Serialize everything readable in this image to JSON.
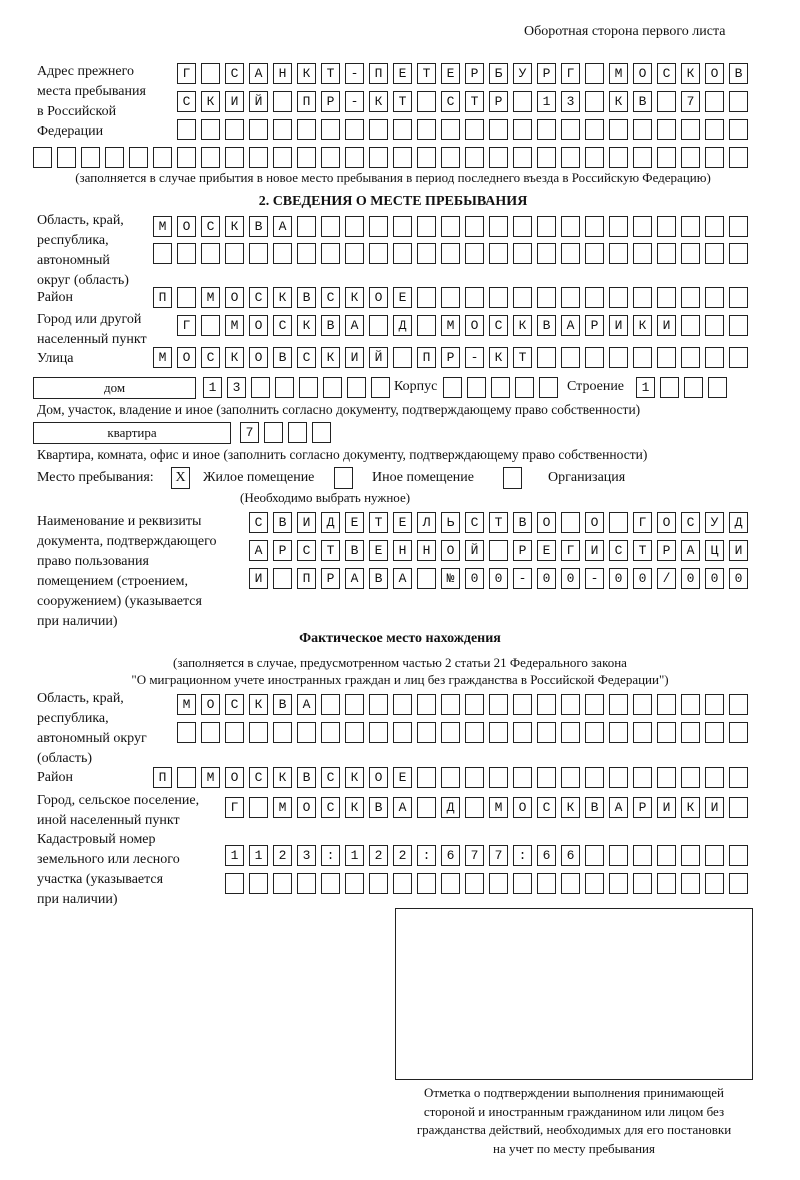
{
  "header": "Оборотная сторона первого листа",
  "prev_address": {
    "label": [
      "Адрес прежнего",
      "места пребывания",
      "в Российской",
      "Федерации"
    ],
    "rows": [
      "Г САНКТ-ПЕТЕРБУРГ МОСКОВ",
      "СКИЙ ПР-КТ СТР 13 КВ 7  ",
      "                        ",
      "                              "
    ],
    "note": "(заполняется в случае прибытия в новое место пребывания в период последнего въезда в Российскую Федерацию)"
  },
  "section2": {
    "title": "2. СВЕДЕНИЯ О МЕСТЕ ПРЕБЫВАНИЯ",
    "region_label": [
      "Область, край,",
      "республика,",
      "автономный",
      "округ (область)"
    ],
    "region_rows": [
      "МОСКВА                   ",
      "                         "
    ],
    "district_label": "Район",
    "district_row": "П МОСКВСКОЕ              ",
    "city_label": [
      "Город или другой",
      "населенный пункт"
    ],
    "city_row": "Г МОСКВА Д МОСКВАРИКИ   ",
    "street_label": "Улица",
    "street_row": "МОСКОВСКИЙ ПР-КТ         ",
    "house_type": "дом",
    "house_row": "13      ",
    "building_label": "Корпус",
    "building_row": "     ",
    "structure_label": "Строение",
    "structure_row": "1   ",
    "house_note": "Дом, участок, владение и иное (заполнить согласно документу, подтверждающему право собственности)",
    "apt_type": "квартира",
    "apt_row": "7   ",
    "apt_note": "Квартира, комната, офис и иное (заполнить согласно документу, подтверждающему право собственности)",
    "stay_label": "Место пребывания:",
    "stay_options": [
      {
        "label": "Жилое помещение",
        "mark": "X",
        "checked": true
      },
      {
        "label": "Иное помещение",
        "mark": "",
        "checked": false
      },
      {
        "label": "Организация",
        "mark": "",
        "checked": false
      }
    ],
    "stay_note": "(Необходимо выбрать нужное)",
    "doc_label": [
      "Наименование и реквизиты",
      "документа, подтверждающего",
      "право пользования",
      "помещением (строением,",
      "сооружением) (указывается",
      "при наличии)"
    ],
    "doc_rows": [
      "СВИДЕТЕЛЬСТВО О ГОСУД",
      "АРСТВЕННОЙ РЕГИСТРАЦИ",
      "И ПРАВА №00-00-00/000"
    ]
  },
  "actual": {
    "title": "Фактическое место нахождения",
    "note1": "(заполняется в случае, предусмотренном частью 2 статьи 21 Федерального закона",
    "note2": "\"О миграционном учете иностранных граждан и лиц без гражданства в Российской Федерации\")",
    "region_label": [
      "Область, край,",
      "республика,",
      "автономный округ",
      "(область)"
    ],
    "region_rows": [
      "МОСКВА                  ",
      "                        "
    ],
    "district_label": "Район",
    "district_row": "П МОСКВСКОЕ              ",
    "city_label": [
      "Город, сельское поселение,",
      "иной населенный пункт"
    ],
    "city_row": "Г МОСКВА Д МОСКВАРИКИ ",
    "cadastral_label": [
      "Кадастровый номер",
      "земельного или лесного",
      "участка (указывается",
      "при наличии)"
    ],
    "cadastral_rows": [
      "1123:122:677:66       ",
      "                      "
    ]
  },
  "confirmation_caption": [
    "Отметка о подтверждении выполнения принимающей",
    "стороной и иностранным гражданином или лицом без",
    "гражданства действий, необходимых для его постановки",
    "на учет по месту пребывания"
  ]
}
